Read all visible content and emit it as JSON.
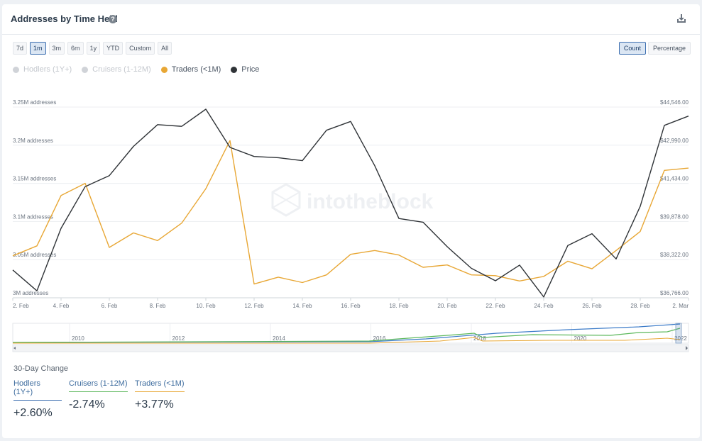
{
  "header": {
    "title": "Addresses by Time Held",
    "help_icon": "question-circle-icon",
    "download_icon": "download-icon"
  },
  "range_buttons": [
    {
      "label": "7d",
      "active": false
    },
    {
      "label": "1m",
      "active": true
    },
    {
      "label": "3m",
      "active": false
    },
    {
      "label": "6m",
      "active": false
    },
    {
      "label": "1y",
      "active": false
    },
    {
      "label": "YTD",
      "active": false
    },
    {
      "label": "Custom",
      "active": false
    },
    {
      "label": "All",
      "active": false
    }
  ],
  "mode_buttons": [
    {
      "label": "Count",
      "active": true
    },
    {
      "label": "Percentage",
      "active": false
    }
  ],
  "legend": [
    {
      "label": "Hodlers (1Y+)",
      "enabled": false
    },
    {
      "label": "Cruisers (1-12M)",
      "enabled": false
    },
    {
      "label": "Traders (<1M)",
      "enabled": true,
      "color": "#e8a735"
    },
    {
      "label": "Price",
      "enabled": true,
      "color": "#2f3337"
    }
  ],
  "watermark": "intotheblock",
  "colors": {
    "traders": "#e8a735",
    "price": "#2f3337",
    "hodlers": "#3d7cc9",
    "cruisers": "#5cb85c",
    "accent": "#3d6fb0"
  },
  "chart_data": {
    "type": "line",
    "x_ticks": [
      "2. Feb",
      "4. Feb",
      "6. Feb",
      "8. Feb",
      "10. Feb",
      "12. Feb",
      "14. Feb",
      "16. Feb",
      "18. Feb",
      "20. Feb",
      "22. Feb",
      "24. Feb",
      "26. Feb",
      "28. Feb",
      "2. Mar"
    ],
    "y_left_ticks": [
      "3M addresses",
      "3.05M addresses",
      "3.1M addresses",
      "3.15M addresses",
      "3.2M addresses",
      "3.25M addresses"
    ],
    "y_right_ticks": [
      "$36,766.00",
      "$38,322.00",
      "$39,878.00",
      "$41,434.00",
      "$42,990.00",
      "$44,546.00"
    ],
    "y_left_range": [
      3000000,
      3250000
    ],
    "y_right_range": [
      36766,
      44546
    ],
    "x_range_days": [
      2,
      30
    ],
    "series": [
      {
        "name": "Traders (<1M)",
        "axis": "left",
        "values": [
          [
            2,
            3055000
          ],
          [
            3,
            3068000
          ],
          [
            4,
            3134000
          ],
          [
            5,
            3150000
          ],
          [
            6,
            3066000
          ],
          [
            7,
            3085000
          ],
          [
            8,
            3075000
          ],
          [
            9,
            3098000
          ],
          [
            10,
            3143000
          ],
          [
            11,
            3206000
          ],
          [
            12,
            3018000
          ],
          [
            13,
            3027000
          ],
          [
            14,
            3020000
          ],
          [
            15,
            3030000
          ],
          [
            16,
            3057000
          ],
          [
            17,
            3062000
          ],
          [
            18,
            3056000
          ],
          [
            19,
            3040000
          ],
          [
            20,
            3043000
          ],
          [
            21,
            3030000
          ],
          [
            22,
            3029000
          ],
          [
            23,
            3022000
          ],
          [
            24,
            3028000
          ],
          [
            25,
            3048000
          ],
          [
            26,
            3038000
          ],
          [
            27,
            3062000
          ],
          [
            28,
            3087000
          ],
          [
            29,
            3167000
          ],
          [
            30,
            3170000
          ]
        ]
      },
      {
        "name": "Price",
        "axis": "right",
        "values": [
          [
            2,
            37900
          ],
          [
            3,
            37050
          ],
          [
            4,
            39600
          ],
          [
            5,
            41300
          ],
          [
            6,
            41750
          ],
          [
            7,
            42940
          ],
          [
            8,
            43830
          ],
          [
            9,
            43760
          ],
          [
            10,
            44460
          ],
          [
            11,
            42900
          ],
          [
            12,
            42530
          ],
          [
            13,
            42480
          ],
          [
            14,
            42360
          ],
          [
            15,
            43600
          ],
          [
            16,
            43960
          ],
          [
            17,
            42150
          ],
          [
            18,
            40000
          ],
          [
            19,
            39850
          ],
          [
            20,
            38850
          ],
          [
            21,
            37970
          ],
          [
            22,
            37460
          ],
          [
            23,
            38100
          ],
          [
            24,
            36800
          ],
          [
            25,
            38900
          ],
          [
            26,
            39380
          ],
          [
            27,
            38350
          ],
          [
            28,
            40500
          ],
          [
            29,
            43800
          ],
          [
            30,
            44180
          ]
        ]
      }
    ],
    "navigator": {
      "x_ticks": [
        "2010",
        "2012",
        "2014",
        "2016",
        "2018",
        "2020",
        "2022"
      ]
    }
  },
  "change": {
    "title": "30-Day Change",
    "items": [
      {
        "label": "Hodlers (1Y+)",
        "value": "+2.60%"
      },
      {
        "label": "Cruisers (1-12M)",
        "value": "-2.74%"
      },
      {
        "label": "Traders (<1M)",
        "value": "+3.77%"
      }
    ]
  }
}
